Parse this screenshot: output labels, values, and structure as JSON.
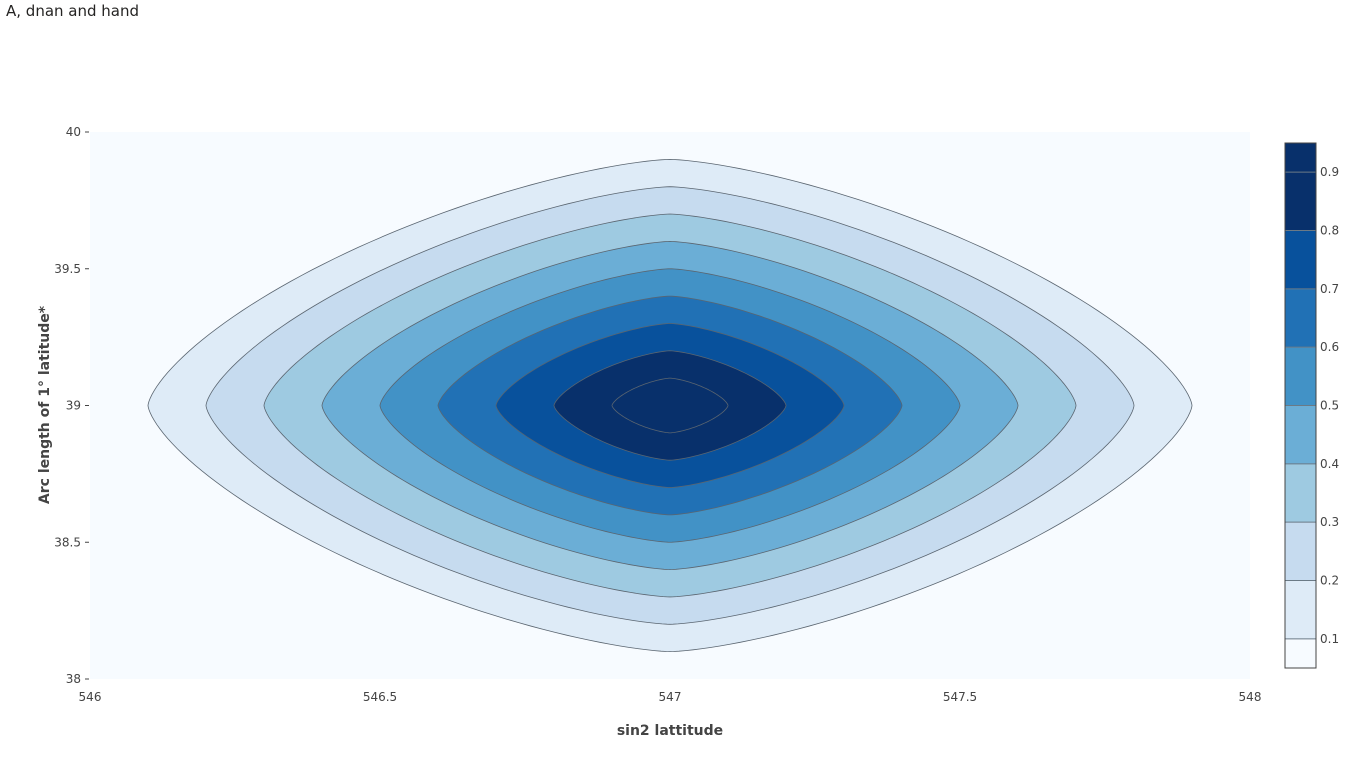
{
  "page": {
    "title": "A, dnan and hand"
  },
  "chart_data": {
    "type": "contour",
    "xlabel": "sin2 lattitude",
    "ylabel": "Arc length of 1° latitude*",
    "xlim": [
      546,
      548
    ],
    "ylim": [
      38,
      40
    ],
    "x_ticks": [
      "546",
      "546.5",
      "547",
      "547.5",
      "548"
    ],
    "y_ticks": [
      "38",
      "38.5",
      "39",
      "39.5",
      "40"
    ],
    "center": {
      "x": 547,
      "y": 39
    },
    "contour_levels": [
      0.1,
      0.2,
      0.3,
      0.4,
      0.5,
      0.6,
      0.7,
      0.8,
      0.9
    ],
    "contours": [
      {
        "level": 0.1,
        "x_halfwidth": 0.9,
        "y_halfwidth": 0.9
      },
      {
        "level": 0.2,
        "x_halfwidth": 0.8,
        "y_halfwidth": 0.8
      },
      {
        "level": 0.3,
        "x_halfwidth": 0.7,
        "y_halfwidth": 0.7
      },
      {
        "level": 0.4,
        "x_halfwidth": 0.6,
        "y_halfwidth": 0.6
      },
      {
        "level": 0.5,
        "x_halfwidth": 0.5,
        "y_halfwidth": 0.5
      },
      {
        "level": 0.6,
        "x_halfwidth": 0.4,
        "y_halfwidth": 0.4
      },
      {
        "level": 0.7,
        "x_halfwidth": 0.3,
        "y_halfwidth": 0.3
      },
      {
        "level": 0.8,
        "x_halfwidth": 0.2,
        "y_halfwidth": 0.2
      },
      {
        "level": 0.9,
        "x_halfwidth": 0.1,
        "y_halfwidth": 0.1
      }
    ],
    "colorbar": {
      "range": [
        0.05,
        0.95
      ],
      "ticks": [
        "0.1",
        "0.2",
        "0.3",
        "0.4",
        "0.5",
        "0.6",
        "0.7",
        "0.8",
        "0.9"
      ],
      "colors": [
        "#f7fbff",
        "#deebf7",
        "#c6dbef",
        "#9ecae1",
        "#6baed6",
        "#4292c6",
        "#2171b5",
        "#08519c",
        "#08306b"
      ]
    },
    "colorscale": "Blues",
    "grid": false,
    "legend": "right"
  }
}
